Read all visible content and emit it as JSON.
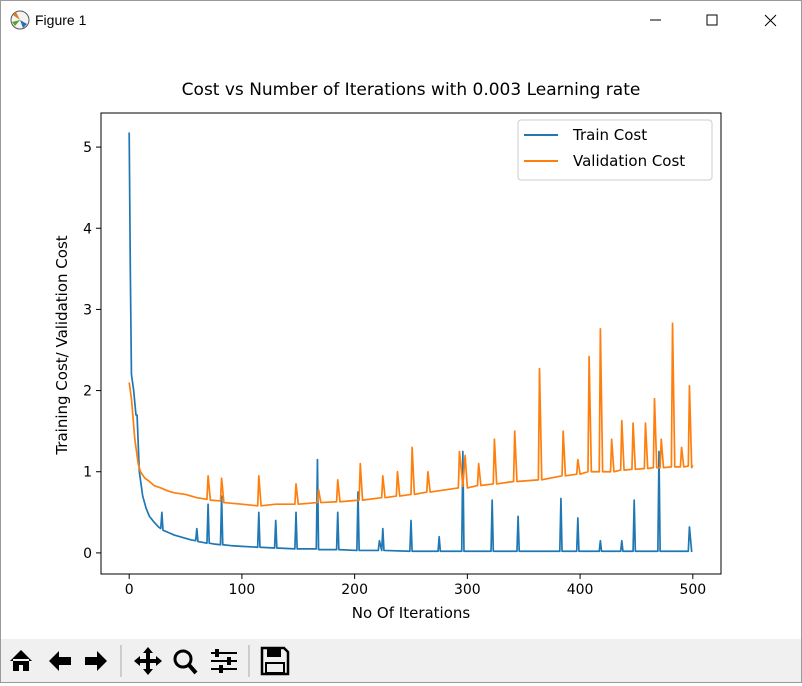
{
  "window": {
    "title": "Figure 1"
  },
  "chart_data": {
    "type": "line",
    "title": "Cost vs Number of Iterations with 0.003 Learning rate",
    "x_label": "No Of Iterations",
    "y_label": "Training Cost/ Validation Cost",
    "xlim": [
      -25,
      525
    ],
    "ylim": [
      -0.26,
      5.42
    ],
    "xticks": [
      0,
      100,
      200,
      300,
      400,
      500
    ],
    "yticks": [
      0,
      1,
      2,
      3,
      4,
      5
    ],
    "legend": "upper right",
    "series": [
      {
        "name": "Train Cost",
        "color": "#1f77b4",
        "x": [
          0,
          1,
          2,
          4,
          6,
          7,
          9,
          12,
          15,
          18,
          22,
          26,
          28,
          29,
          30,
          35,
          40,
          45,
          50,
          55,
          59,
          60,
          61,
          65,
          69,
          70,
          71,
          75,
          81,
          82,
          83,
          90,
          100,
          114,
          115,
          116,
          129,
          130,
          131,
          147,
          148,
          149,
          166,
          167,
          168,
          184,
          185,
          186,
          202,
          203,
          204,
          221,
          222,
          224,
          225,
          226,
          249,
          250,
          251,
          274,
          275,
          276,
          295,
          296,
          297,
          321,
          322,
          323,
          344,
          345,
          346,
          382,
          383,
          384,
          397,
          398,
          399,
          417,
          418,
          419,
          436,
          437,
          438,
          447,
          448,
          449,
          469,
          470,
          471,
          496,
          497,
          499
        ],
        "values": [
          5.18,
          3.5,
          2.2,
          2.0,
          1.7,
          1.7,
          1.0,
          0.7,
          0.55,
          0.45,
          0.38,
          0.32,
          0.3,
          0.5,
          0.28,
          0.25,
          0.22,
          0.2,
          0.18,
          0.16,
          0.15,
          0.3,
          0.14,
          0.13,
          0.12,
          0.6,
          0.12,
          0.11,
          0.1,
          0.7,
          0.1,
          0.09,
          0.08,
          0.07,
          0.5,
          0.07,
          0.06,
          0.4,
          0.06,
          0.05,
          0.5,
          0.05,
          0.05,
          1.15,
          0.04,
          0.04,
          0.5,
          0.04,
          0.03,
          0.75,
          0.03,
          0.03,
          0.15,
          0.03,
          0.3,
          0.03,
          0.02,
          0.4,
          0.02,
          0.02,
          0.2,
          0.02,
          0.02,
          1.25,
          0.02,
          0.02,
          0.65,
          0.02,
          0.02,
          0.45,
          0.02,
          0.02,
          0.67,
          0.02,
          0.02,
          0.43,
          0.02,
          0.02,
          0.15,
          0.02,
          0.02,
          0.15,
          0.02,
          0.02,
          0.65,
          0.02,
          0.02,
          1.25,
          0.02,
          0.02,
          0.32,
          0.01
        ]
      },
      {
        "name": "Validation Cost",
        "color": "#ff7f0e",
        "x": [
          0,
          2,
          5,
          8,
          10,
          14,
          18,
          22,
          28,
          35,
          40,
          50,
          60,
          69,
          70,
          72,
          81,
          82,
          84,
          100,
          114,
          115,
          117,
          130,
          147,
          148,
          150,
          167,
          168,
          170,
          184,
          185,
          187,
          204,
          205,
          207,
          224,
          225,
          227,
          237,
          238,
          240,
          250,
          251,
          253,
          264,
          265,
          267,
          292,
          293,
          296,
          298,
          300,
          309,
          310,
          312,
          323,
          324,
          326,
          341,
          342,
          344,
          363,
          364,
          366,
          384,
          385,
          387,
          397,
          398,
          400,
          407,
          408,
          410,
          417,
          418,
          420,
          427,
          428,
          430,
          436,
          437,
          439,
          446,
          447,
          449,
          457,
          458,
          460,
          465,
          466,
          468,
          471,
          472,
          474,
          481,
          482,
          484,
          489,
          490,
          492,
          496,
          497,
          499,
          500
        ],
        "values": [
          2.1,
          1.9,
          1.4,
          1.1,
          1.0,
          0.92,
          0.88,
          0.83,
          0.8,
          0.76,
          0.74,
          0.72,
          0.68,
          0.66,
          0.95,
          0.65,
          0.64,
          0.92,
          0.62,
          0.6,
          0.58,
          0.95,
          0.58,
          0.6,
          0.6,
          0.85,
          0.6,
          0.62,
          0.78,
          0.62,
          0.63,
          0.9,
          0.63,
          0.65,
          1.1,
          0.65,
          0.68,
          0.95,
          0.68,
          0.7,
          1.0,
          0.7,
          0.72,
          1.3,
          0.72,
          0.75,
          1.0,
          0.75,
          0.8,
          1.25,
          0.82,
          1.2,
          0.8,
          0.83,
          1.1,
          0.83,
          0.85,
          1.4,
          0.85,
          0.88,
          1.5,
          0.88,
          0.9,
          2.27,
          0.9,
          0.95,
          1.5,
          0.95,
          0.97,
          1.15,
          0.97,
          1.0,
          2.42,
          1.0,
          1.0,
          2.76,
          1.0,
          1.0,
          1.4,
          1.0,
          1.02,
          1.63,
          1.02,
          1.03,
          1.6,
          1.03,
          1.04,
          1.6,
          1.04,
          1.05,
          1.9,
          1.05,
          1.05,
          1.4,
          1.05,
          1.06,
          2.83,
          1.06,
          1.06,
          1.3,
          1.06,
          1.07,
          2.06,
          1.05,
          1.08
        ]
      }
    ]
  }
}
